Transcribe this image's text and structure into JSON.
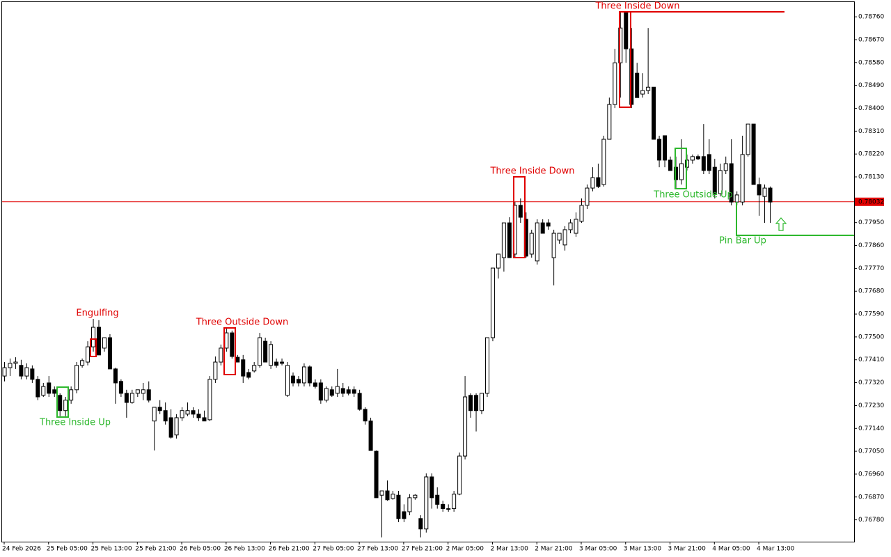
{
  "chart_data": {
    "type": "candlestick",
    "up_color": "#ffffff",
    "down_color": "#000000",
    "outline_color": "#000000",
    "categories": [
      "24 Feb 2026",
      null,
      null,
      null,
      null,
      null,
      null,
      null,
      "25 Feb 05:00",
      null,
      null,
      null,
      null,
      null,
      null,
      null,
      "25 Feb 13:00",
      null,
      null,
      null,
      null,
      null,
      null,
      null,
      "25 Feb 21:00",
      null,
      null,
      null,
      null,
      null,
      null,
      null,
      "26 Feb 05:00",
      null,
      null,
      null,
      null,
      null,
      null,
      null,
      "26 Feb 13:00",
      null,
      null,
      null,
      null,
      null,
      null,
      null,
      "26 Feb 21:00",
      null,
      null,
      null,
      null,
      null,
      null,
      null,
      "27 Feb 05:00",
      null,
      null,
      null,
      null,
      null,
      null,
      null,
      "27 Feb 13:00",
      null,
      null,
      null,
      null,
      null,
      null,
      null,
      "27 Feb 21:00",
      null,
      null,
      null,
      null,
      null,
      null,
      null,
      "2 Mar 05:00",
      null,
      null,
      null,
      null,
      null,
      null,
      null,
      "2 Mar 13:00",
      null,
      null,
      null,
      null,
      null,
      null,
      null,
      "2 Mar 21:00",
      null,
      null,
      null,
      null,
      null,
      null,
      null,
      "3 Mar 05:00",
      null,
      null,
      null,
      null,
      null,
      null,
      null,
      "3 Mar 13:00",
      null,
      null,
      null,
      null,
      null,
      null,
      null,
      "3 Mar 21:00",
      null,
      null,
      null,
      null,
      null,
      null,
      null,
      "4 Mar 05:00",
      null,
      null,
      null,
      null,
      null,
      null,
      null,
      "4 Mar 13:00",
      null,
      null
    ],
    "open": [
      0.77346,
      0.77379,
      0.77396,
      0.77388,
      0.77346,
      0.77374,
      0.77333,
      0.7727,
      0.77319,
      0.77292,
      0.7727,
      0.7721,
      0.77251,
      0.77292,
      0.77388,
      0.77401,
      0.77461,
      0.77538,
      0.77456,
      0.77497,
      0.77374,
      0.77325,
      0.77278,
      0.77242,
      0.77278,
      0.77278,
      0.77292,
      0.77169,
      0.77223,
      0.7721,
      0.77182,
      0.77114,
      0.77182,
      0.77196,
      0.7721,
      0.77196,
      0.77182,
      0.77174,
      0.77333,
      0.77401,
      0.77456,
      0.77516,
      0.7742,
      0.7741,
      0.7736,
      0.77366,
      0.77388,
      0.77483,
      0.77388,
      0.77401,
      0.77401,
      0.7727,
      0.77346,
      0.77333,
      0.77319,
      0.77382,
      0.77319,
      0.77319,
      0.77251,
      0.77292,
      0.77278,
      0.77297,
      0.77292,
      0.77292,
      0.77278,
      0.77215,
      0.77169,
      0.7705,
      0.76877,
      0.76894,
      0.76864,
      0.76877,
      0.76812,
      0.76812,
      0.76867,
      0.76785,
      0.76744,
      0.76949,
      0.76877,
      0.76841,
      0.76824,
      0.76824,
      0.76881,
      0.77031,
      0.7727,
      0.7727,
      0.7721,
      0.77278,
      0.77497,
      0.77771,
      0.77812,
      0.77949,
      0.77826,
      0.78018,
      0.77963,
      0.77826,
      0.77799,
      0.77949,
      0.77949,
      0.77812,
      0.77881,
      0.77862,
      0.77922,
      0.77908,
      0.77955,
      0.78018,
      0.78086,
      0.78127,
      0.781,
      0.78278,
      0.78415,
      0.78579,
      0.78777,
      0.78634,
      0.78538,
      0.78456,
      0.7847,
      0.78483,
      0.78278,
      0.78292,
      0.78196,
      0.78168,
      0.78119,
      0.78168,
      0.78196,
      0.7821,
      0.7821,
      0.78218,
      0.78168,
      0.78064,
      0.78155,
      0.78182,
      0.78031,
      0.78031,
      0.78218,
      0.78338,
      0.781,
      0.78053,
      0.78086
    ],
    "high": [
      0.77401,
      0.77415,
      0.7742,
      0.7741,
      0.77396,
      0.77388,
      0.77346,
      0.77319,
      0.77346,
      0.77305,
      0.77278,
      0.77264,
      0.77305,
      0.77401,
      0.77415,
      0.77483,
      0.77571,
      0.77566,
      0.77497,
      0.77511,
      0.77379,
      0.77333,
      0.77292,
      0.77292,
      0.77292,
      0.77319,
      0.77325,
      0.77223,
      0.77251,
      0.77242,
      0.77215,
      0.77196,
      0.77223,
      0.77242,
      0.77223,
      0.77215,
      0.7721,
      0.77346,
      0.77423,
      0.7747,
      0.77538,
      0.77525,
      0.77429,
      0.77429,
      0.77374,
      0.77401,
      0.77516,
      0.77497,
      0.77483,
      0.77415,
      0.77415,
      0.77401,
      0.7736,
      0.77346,
      0.77396,
      0.77388,
      0.77333,
      0.77333,
      0.77305,
      0.77305,
      0.77374,
      0.77319,
      0.77305,
      0.77305,
      0.77292,
      0.77223,
      0.77182,
      0.77053,
      0.76894,
      0.76935,
      0.76894,
      0.76894,
      0.76841,
      0.76881,
      0.76881,
      0.76798,
      0.76963,
      0.76963,
      0.76908,
      0.76855,
      0.76841,
      0.76894,
      0.77045,
      0.77346,
      0.77278,
      0.77278,
      0.77278,
      0.77497,
      0.77771,
      0.77826,
      0.77949,
      0.77971,
      0.78031,
      0.78045,
      0.7799,
      0.77922,
      0.77963,
      0.77963,
      0.77963,
      0.77922,
      0.77908,
      0.77936,
      0.77963,
      0.7799,
      0.78045,
      0.781,
      0.78168,
      0.78182,
      0.78292,
      0.78442,
      0.78634,
      0.78777,
      0.78777,
      0.78716,
      0.78579,
      0.78538,
      0.78716,
      0.78483,
      0.78292,
      0.78292,
      0.7821,
      0.7821,
      0.78278,
      0.78218,
      0.78218,
      0.78218,
      0.78338,
      0.78278,
      0.78201,
      0.78182,
      0.7821,
      0.78278,
      0.78073,
      0.78292,
      0.78338,
      0.78338,
      0.78127,
      0.781,
      0.78092
    ],
    "low": [
      0.77325,
      0.77346,
      0.77374,
      0.77333,
      0.77333,
      0.77319,
      0.77251,
      0.77264,
      0.77264,
      0.77264,
      0.77188,
      0.77188,
      0.77237,
      0.77278,
      0.77379,
      0.77388,
      0.77442,
      0.77429,
      0.77442,
      0.77374,
      0.77237,
      0.77264,
      0.77182,
      0.77237,
      0.77264,
      0.77251,
      0.77242,
      0.77053,
      0.77196,
      0.77155,
      0.771,
      0.771,
      0.77169,
      0.77188,
      0.77182,
      0.77169,
      0.77169,
      0.77169,
      0.77319,
      0.77388,
      0.77442,
      0.77415,
      0.77401,
      0.77319,
      0.77333,
      0.7736,
      0.77379,
      0.77401,
      0.77374,
      0.77379,
      0.77388,
      0.77264,
      0.77305,
      0.77305,
      0.77305,
      0.77305,
      0.77297,
      0.77237,
      0.77242,
      0.77264,
      0.77264,
      0.77264,
      0.7727,
      0.77264,
      0.7721,
      0.77155,
      0.77053,
      0.76867,
      0.76711,
      0.76855,
      0.76859,
      0.76771,
      0.76771,
      0.76798,
      0.76859,
      0.76711,
      0.7673,
      0.76824,
      0.76824,
      0.76812,
      0.76812,
      0.76812,
      0.76877,
      0.77018,
      0.77182,
      0.77128,
      0.77196,
      0.77264,
      0.77483,
      0.7773,
      0.77757,
      0.77812,
      0.77812,
      0.77949,
      0.77812,
      0.77812,
      0.77785,
      0.77908,
      0.77922,
      0.77703,
      0.77867,
      0.7784,
      0.77908,
      0.77894,
      0.77949,
      0.78004,
      0.78073,
      0.78086,
      0.78092,
      0.78278,
      0.78401,
      0.78442,
      0.78579,
      0.78401,
      0.78442,
      0.78442,
      0.78456,
      0.78278,
      0.78168,
      0.78168,
      0.78155,
      0.78086,
      0.781,
      0.78155,
      0.78182,
      0.78196,
      0.78141,
      0.78141,
      0.78045,
      0.78053,
      0.78141,
      0.78018,
      0.78018,
      0.78018,
      0.7821,
      0.781,
      0.77977,
      0.77949,
      0.77949
    ],
    "close": [
      0.77379,
      0.77396,
      0.77401,
      0.77346,
      0.77379,
      0.77333,
      0.77264,
      0.77305,
      0.77278,
      0.77278,
      0.7721,
      0.77251,
      0.77292,
      0.77388,
      0.77407,
      0.77461,
      0.77538,
      0.77429,
      0.77497,
      0.77374,
      0.77319,
      0.77278,
      0.77242,
      0.77278,
      0.77292,
      0.77292,
      0.77251,
      0.77223,
      0.7721,
      0.77169,
      0.77105,
      0.77182,
      0.7721,
      0.7721,
      0.77196,
      0.77182,
      0.77169,
      0.77333,
      0.77401,
      0.77456,
      0.77516,
      0.77423,
      0.77401,
      0.77346,
      0.77341,
      0.77388,
      0.77497,
      0.77401,
      0.7747,
      0.77388,
      0.77396,
      0.77388,
      0.77319,
      0.77319,
      0.77382,
      0.77319,
      0.77305,
      0.77251,
      0.77297,
      0.7727,
      0.77305,
      0.77278,
      0.77278,
      0.77278,
      0.77215,
      0.77169,
      0.77053,
      0.76867,
      0.76894,
      0.76859,
      0.76881,
      0.76785,
      0.76785,
      0.76867,
      0.76877,
      0.76744,
      0.76949,
      0.76867,
      0.76841,
      0.76824,
      0.76824,
      0.76881,
      0.77031,
      0.77264,
      0.7721,
      0.7721,
      0.77278,
      0.77497,
      0.77771,
      0.77826,
      0.77949,
      0.77812,
      0.78018,
      0.77971,
      0.77818,
      0.77908,
      0.77949,
      0.77908,
      0.77936,
      0.77908,
      0.77908,
      0.77922,
      0.77949,
      0.77963,
      0.78018,
      0.78086,
      0.78127,
      0.78092,
      0.78278,
      0.78415,
      0.78579,
      0.78716,
      0.78634,
      0.78415,
      0.78442,
      0.7847,
      0.78483,
      0.78278,
      0.78196,
      0.78196,
      0.78155,
      0.78119,
      0.78182,
      0.78196,
      0.7821,
      0.78201,
      0.78155,
      0.78155,
      0.78064,
      0.78155,
      0.78182,
      0.78031,
      0.78059,
      0.78218,
      0.78338,
      0.781,
      0.78059,
      0.78086,
      0.78031
    ],
    "ylim": [
      0.76694,
      0.78818
    ],
    "yticks": [
      {
        "value": 0.7876,
        "label": "0.78760"
      },
      {
        "value": 0.7867,
        "label": "0.78670"
      },
      {
        "value": 0.7858,
        "label": "0.78580"
      },
      {
        "value": 0.7849,
        "label": "0.78490"
      },
      {
        "value": 0.784,
        "label": "0.78400"
      },
      {
        "value": 0.7831,
        "label": "0.78310"
      },
      {
        "value": 0.7822,
        "label": "0.78220"
      },
      {
        "value": 0.7813,
        "label": "0.78130"
      },
      {
        "value": 0.7795,
        "label": "0.77950"
      },
      {
        "value": 0.7786,
        "label": "0.77860"
      },
      {
        "value": 0.7777,
        "label": "0.77770"
      },
      {
        "value": 0.7768,
        "label": "0.77680"
      },
      {
        "value": 0.7759,
        "label": "0.77590"
      },
      {
        "value": 0.775,
        "label": "0.77500"
      },
      {
        "value": 0.7741,
        "label": "0.77410"
      },
      {
        "value": 0.7732,
        "label": "0.77320"
      },
      {
        "value": 0.7723,
        "label": "0.77230"
      },
      {
        "value": 0.7714,
        "label": "0.77140"
      },
      {
        "value": 0.7705,
        "label": "0.77050"
      },
      {
        "value": 0.7696,
        "label": "0.76960"
      },
      {
        "value": 0.7687,
        "label": "0.76870"
      },
      {
        "value": 0.7678,
        "label": "0.76780"
      }
    ],
    "grid": false,
    "current_price": 0.78032,
    "current_price_color": "#e00000",
    "annotations": [
      {
        "text": "Engulfing",
        "color": "#e00000"
      },
      {
        "text": "Three Inside Up",
        "color": "#2db82d"
      },
      {
        "text": "Three Outside Down",
        "color": "#e00000"
      },
      {
        "text": "Three Inside Down",
        "color": "#e00000"
      },
      {
        "text": "Three Inside Down",
        "color": "#e00000"
      },
      {
        "text": "Three Outside Up",
        "color": "#2db82d"
      },
      {
        "text": "Pin Bar Up",
        "color": "#2db82d"
      }
    ]
  }
}
